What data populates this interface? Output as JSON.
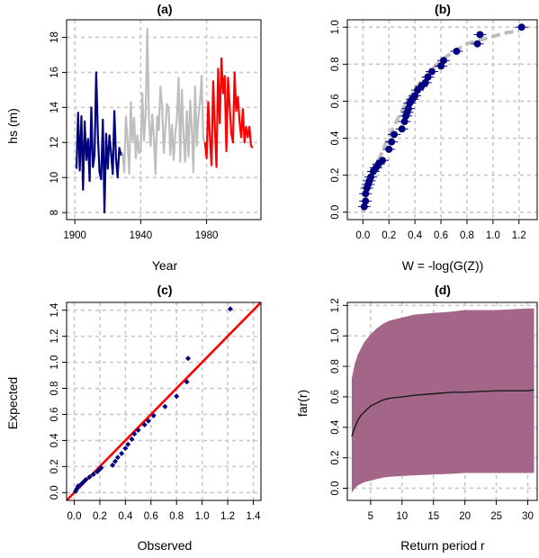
{
  "chart_data": [
    {
      "panel": "(a)",
      "type": "line",
      "title": "(a)",
      "xlabel": "Year",
      "ylabel": "hs (m)",
      "xlim": [
        1895,
        2013
      ],
      "ylim": [
        7.6,
        19
      ],
      "xticks": [
        "1900",
        "1940",
        "1980"
      ],
      "yticks": [
        "8",
        "10",
        "12",
        "14",
        "16",
        "18"
      ],
      "grid": true,
      "series": [
        {
          "color": "#000080",
          "x": [
            1901,
            1902,
            1903,
            1904,
            1905,
            1906,
            1907,
            1908,
            1909,
            1910,
            1911,
            1912,
            1913,
            1914,
            1915,
            1916,
            1917,
            1918,
            1919,
            1920,
            1921,
            1922,
            1923,
            1924,
            1925,
            1926,
            1927,
            1928,
            1929
          ],
          "y": [
            10.5,
            13.7,
            10.4,
            13.5,
            9.3,
            13.2,
            11.0,
            12.2,
            9.8,
            14.0,
            10.6,
            11.3,
            16.0,
            12.4,
            10.3,
            9.9,
            13.3,
            8.0,
            12.5,
            10.5,
            12.4,
            11.4,
            10.2,
            13.8,
            11.1,
            10.0,
            11.7,
            11.3,
            11.4
          ]
        },
        {
          "color": "#bebebe",
          "x": [
            1929,
            1930,
            1931,
            1932,
            1933,
            1934,
            1935,
            1936,
            1937,
            1938,
            1939,
            1940,
            1941,
            1942,
            1943,
            1944,
            1945,
            1946,
            1947,
            1948,
            1949,
            1950,
            1951,
            1952,
            1953,
            1954,
            1955,
            1956,
            1957,
            1958,
            1959,
            1960,
            1961,
            1962,
            1963,
            1964,
            1965,
            1966,
            1967,
            1968,
            1969,
            1970,
            1971,
            1972,
            1973,
            1974,
            1975,
            1976,
            1977,
            1978,
            1979
          ],
          "y": [
            11.4,
            10.3,
            13.5,
            12.2,
            10.2,
            14.3,
            12.1,
            13.4,
            11.1,
            12.4,
            11.4,
            11.5,
            14.8,
            12.1,
            13.7,
            18.5,
            13.4,
            11.8,
            13.6,
            12.3,
            10.2,
            13.5,
            12.7,
            15.2,
            14.1,
            11.4,
            12.8,
            14.2,
            13.9,
            11.3,
            13.0,
            11.0,
            12.5,
            13.4,
            15.7,
            10.9,
            15.0,
            12.4,
            10.9,
            13.8,
            11.2,
            14.4,
            12.9,
            10.3,
            15.2,
            11.8,
            13.4,
            14.3,
            15.8,
            12.2,
            12.0
          ]
        },
        {
          "color": "#ff0000",
          "x": [
            1979,
            1980,
            1981,
            1982,
            1983,
            1984,
            1985,
            1986,
            1987,
            1988,
            1989,
            1990,
            1991,
            1992,
            1993,
            1994,
            1995,
            1996,
            1997,
            1998,
            1999,
            2000,
            2001,
            2002,
            2003,
            2004,
            2005,
            2006,
            2007,
            2008
          ],
          "y": [
            12.0,
            11.1,
            14.3,
            12.3,
            10.7,
            15.5,
            13.0,
            10.6,
            16.2,
            13.1,
            16.8,
            14.8,
            15.8,
            11.5,
            15.7,
            14.1,
            12.5,
            12.0,
            16.0,
            13.8,
            14.6,
            13.2,
            12.3,
            13.9,
            12.0,
            12.9,
            12.3,
            12.9,
            11.8,
            11.7
          ]
        }
      ]
    },
    {
      "panel": "(b)",
      "type": "scatter",
      "title": "(b)",
      "xlabel": "W = -log(G(Z))",
      "ylabel": "",
      "xlim": [
        -0.12,
        1.34
      ],
      "ylim": [
        -0.04,
        1.04
      ],
      "xticks": [
        "0.0",
        "0.2",
        "0.4",
        "0.6",
        "0.8",
        "1.0",
        "1.2"
      ],
      "yticks": [
        "0.0",
        "0.2",
        "0.4",
        "0.6",
        "0.8",
        "1.0"
      ],
      "grid": true,
      "fitted_line": {
        "color": "#bebebe",
        "x": [
          0.0,
          0.02,
          0.05,
          0.1,
          0.15,
          0.2,
          0.25,
          0.3,
          0.35,
          0.4,
          0.45,
          0.5,
          0.6,
          0.7,
          0.8,
          0.9,
          1.0,
          1.1,
          1.2
        ],
        "y": [
          0.0,
          0.07,
          0.15,
          0.25,
          0.33,
          0.41,
          0.48,
          0.55,
          0.61,
          0.66,
          0.71,
          0.75,
          0.82,
          0.87,
          0.91,
          0.93,
          0.95,
          0.97,
          0.98
        ]
      },
      "points": {
        "color": "#000080",
        "x": [
          0.01,
          0.02,
          0.02,
          0.03,
          0.04,
          0.05,
          0.06,
          0.08,
          0.1,
          0.12,
          0.15,
          0.2,
          0.22,
          0.24,
          0.3,
          0.32,
          0.33,
          0.34,
          0.35,
          0.36,
          0.38,
          0.4,
          0.42,
          0.45,
          0.48,
          0.5,
          0.53,
          0.6,
          0.62,
          0.72,
          0.88,
          0.9,
          1.22
        ],
        "y": [
          0.03,
          0.06,
          0.1,
          0.13,
          0.15,
          0.17,
          0.19,
          0.22,
          0.24,
          0.26,
          0.28,
          0.34,
          0.38,
          0.42,
          0.45,
          0.49,
          0.52,
          0.54,
          0.56,
          0.59,
          0.61,
          0.63,
          0.66,
          0.68,
          0.7,
          0.73,
          0.76,
          0.79,
          0.82,
          0.87,
          0.91,
          0.96,
          1.0
        ]
      }
    },
    {
      "panel": "(c)",
      "type": "scatter",
      "title": "(c)",
      "xlabel": "Observed",
      "ylabel": "Expected",
      "xlim": [
        -0.06,
        1.46
      ],
      "ylim": [
        -0.06,
        1.46
      ],
      "xticks": [
        "0.0",
        "0.2",
        "0.4",
        "0.6",
        "0.8",
        "1.0",
        "1.2",
        "1.4"
      ],
      "yticks": [
        "0.0",
        "0.2",
        "0.4",
        "0.6",
        "0.8",
        "1.0",
        "1.2",
        "1.4"
      ],
      "grid": true,
      "reference_line": {
        "color": "#ff0000",
        "x": [
          -0.06,
          1.46
        ],
        "y": [
          -0.06,
          1.46
        ]
      },
      "points": {
        "color": "#000080",
        "x": [
          0.01,
          0.02,
          0.03,
          0.05,
          0.07,
          0.09,
          0.12,
          0.15,
          0.18,
          0.2,
          0.21,
          0.3,
          0.32,
          0.34,
          0.37,
          0.4,
          0.42,
          0.45,
          0.47,
          0.5,
          0.55,
          0.58,
          0.62,
          0.71,
          0.8,
          0.88,
          0.89,
          1.22
        ],
        "y": [
          0.01,
          0.03,
          0.05,
          0.06,
          0.08,
          0.1,
          0.12,
          0.14,
          0.16,
          0.18,
          0.19,
          0.21,
          0.24,
          0.27,
          0.3,
          0.34,
          0.37,
          0.41,
          0.45,
          0.48,
          0.52,
          0.55,
          0.59,
          0.66,
          0.74,
          0.85,
          1.03,
          1.41
        ]
      }
    },
    {
      "panel": "(d)",
      "type": "area",
      "title": "(d)",
      "xlabel": "Return period r",
      "ylabel": "far(r)",
      "xlim": [
        1.3,
        31.5
      ],
      "ylim": [
        -0.08,
        1.22
      ],
      "xticks": [
        "5",
        "10",
        "15",
        "20",
        "25",
        "30"
      ],
      "yticks": [
        "0.0",
        "0.2",
        "0.4",
        "0.6",
        "0.8",
        "1.0",
        "1.2"
      ],
      "grid": true,
      "band_color": "#a36588",
      "x": [
        2,
        2.5,
        3,
        3.5,
        4,
        5,
        6,
        7,
        8,
        10,
        12,
        15,
        18,
        20,
        25,
        30,
        31
      ],
      "lower": [
        -0.03,
        0.0,
        0.02,
        0.03,
        0.04,
        0.05,
        0.06,
        0.07,
        0.075,
        0.08,
        0.085,
        0.09,
        0.095,
        0.1,
        0.1,
        0.1,
        0.1
      ],
      "upper": [
        0.72,
        0.82,
        0.88,
        0.92,
        0.96,
        1.01,
        1.05,
        1.08,
        1.1,
        1.12,
        1.14,
        1.15,
        1.16,
        1.17,
        1.17,
        1.18,
        1.18
      ],
      "estimate": {
        "color": "#1a1a1a",
        "y": [
          0.34,
          0.4,
          0.45,
          0.48,
          0.5,
          0.54,
          0.56,
          0.58,
          0.59,
          0.6,
          0.61,
          0.62,
          0.63,
          0.63,
          0.64,
          0.64,
          0.645
        ]
      }
    }
  ]
}
